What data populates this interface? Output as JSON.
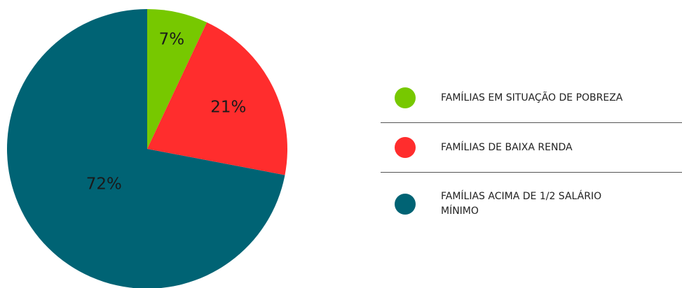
{
  "chart_data": {
    "type": "pie",
    "categories": [
      "FAMÍLIAS EM SITUAÇÃO DE POBREZA",
      "FAMÍLIAS DE BAIXA RENDA",
      "FAMÍLIAS ACIMA DE 1/2 SALÁRIO MÍNIMO"
    ],
    "values": [
      7,
      21,
      72
    ],
    "value_labels": [
      "7%",
      "21%",
      "72%"
    ],
    "colors": [
      "#77c800",
      "#ff2d2d",
      "#006374"
    ]
  }
}
